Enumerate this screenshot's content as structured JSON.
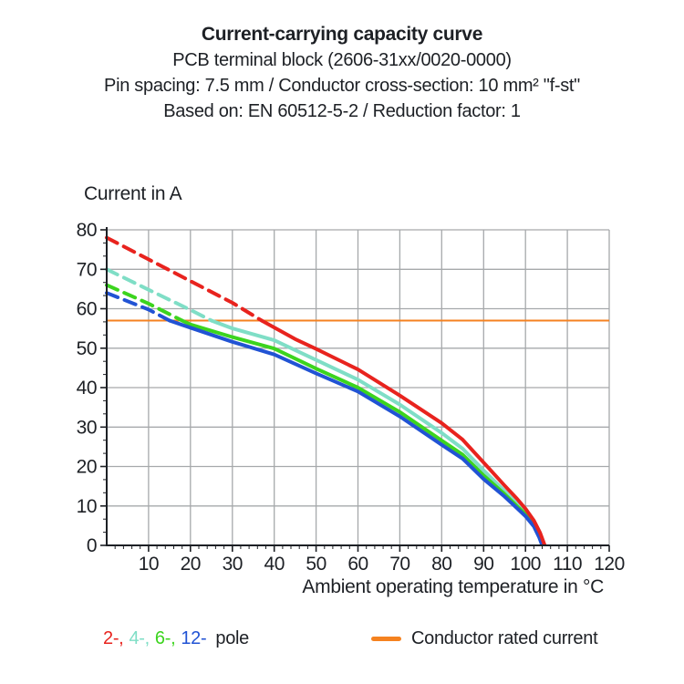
{
  "header": {
    "title": "Current-carrying capacity curve",
    "subtitle_product": "PCB terminal block (2606-31xx/0020-0000)",
    "subtitle_specs": "Pin spacing: 7.5 mm / Conductor cross-section: 10 mm² \"f-st\"",
    "subtitle_standard": "Based on: EN 60512-5-2 / Reduction factor: 1"
  },
  "legend": {
    "poles": [
      {
        "label": "2-,",
        "color": "#e8231e"
      },
      {
        "label": "4-,",
        "color": "#7fdec6"
      },
      {
        "label": "6-,",
        "color": "#3cd41e"
      },
      {
        "label": "12-",
        "color": "#2153d4"
      }
    ],
    "pole_word": "pole",
    "rated_label": "Conductor rated current",
    "rated_color": "#f58220"
  },
  "chart_data": {
    "type": "line",
    "title": "Current-carrying capacity curve",
    "xlabel": "Ambient operating temperature in °C",
    "ylabel": "Current in A",
    "xlim": [
      0,
      120
    ],
    "ylim": [
      0,
      80
    ],
    "xticks": [
      10,
      20,
      30,
      40,
      50,
      60,
      70,
      80,
      90,
      100,
      110,
      120
    ],
    "yticks": [
      0,
      10,
      20,
      30,
      40,
      50,
      60,
      70,
      80
    ],
    "x_minor_per_major": 5,
    "y_minor_per_major": 3,
    "grid": true,
    "grid_color": "#a6a9ab",
    "axis_color": "#1d2025",
    "rated_current": {
      "value": 57,
      "color": "#f58220",
      "label": "Conductor rated current"
    },
    "legend_position": "bottom",
    "series": [
      {
        "name": "4-pole",
        "color": "#7fdec6",
        "dashed_above_rated": true,
        "dashed": [
          [
            0,
            70
          ],
          [
            10,
            64.8
          ],
          [
            20,
            59.7
          ],
          [
            25,
            57
          ]
        ],
        "solid": [
          [
            25,
            57
          ],
          [
            30,
            55
          ],
          [
            40,
            52
          ],
          [
            50,
            47
          ],
          [
            60,
            42
          ],
          [
            70,
            35.7
          ],
          [
            80,
            28.5
          ],
          [
            85,
            24.5
          ],
          [
            90,
            19
          ],
          [
            95,
            13.8
          ],
          [
            98,
            10.5
          ],
          [
            100,
            8.4
          ],
          [
            102,
            5.6
          ],
          [
            103.5,
            2.7
          ],
          [
            104.4,
            0
          ]
        ]
      },
      {
        "name": "6-pole",
        "color": "#3cd41e",
        "dashed_above_rated": true,
        "dashed": [
          [
            0,
            66
          ],
          [
            10,
            61.3
          ],
          [
            18,
            57
          ]
        ],
        "solid": [
          [
            18,
            57
          ],
          [
            20,
            56
          ],
          [
            30,
            52.8
          ],
          [
            40,
            49.9
          ],
          [
            50,
            44.8
          ],
          [
            60,
            40
          ],
          [
            70,
            33.8
          ],
          [
            80,
            26.6
          ],
          [
            85,
            23
          ],
          [
            90,
            17.7
          ],
          [
            95,
            13
          ],
          [
            98,
            9.9
          ],
          [
            100,
            7.9
          ],
          [
            102,
            5.2
          ],
          [
            103.4,
            2.3
          ],
          [
            104.2,
            0
          ]
        ]
      },
      {
        "name": "12-pole",
        "color": "#2153d4",
        "dashed_above_rated": true,
        "dashed": [
          [
            0,
            64
          ],
          [
            10,
            59.8
          ],
          [
            15,
            57
          ]
        ],
        "solid": [
          [
            15,
            57
          ],
          [
            20,
            55.2
          ],
          [
            30,
            51.6
          ],
          [
            40,
            48.4
          ],
          [
            50,
            43.6
          ],
          [
            60,
            39
          ],
          [
            70,
            32.7
          ],
          [
            80,
            25.5
          ],
          [
            85,
            22
          ],
          [
            90,
            16.8
          ],
          [
            95,
            12.4
          ],
          [
            98,
            9.4
          ],
          [
            100,
            7.4
          ],
          [
            102,
            4.8
          ],
          [
            103.3,
            2
          ],
          [
            104,
            0
          ]
        ]
      },
      {
        "name": "2-pole",
        "color": "#e8231e",
        "dashed_above_rated": true,
        "dashed": [
          [
            0,
            78
          ],
          [
            10,
            72.5
          ],
          [
            20,
            67
          ],
          [
            30,
            61.5
          ],
          [
            37,
            57
          ]
        ],
        "solid": [
          [
            37,
            57
          ],
          [
            45,
            52.3
          ],
          [
            50,
            49.8
          ],
          [
            60,
            44.6
          ],
          [
            70,
            38
          ],
          [
            80,
            31
          ],
          [
            85,
            26.8
          ],
          [
            90,
            21
          ],
          [
            95,
            15.2
          ],
          [
            98,
            11.8
          ],
          [
            100,
            9.3
          ],
          [
            102,
            6.3
          ],
          [
            103.5,
            3.2
          ],
          [
            104.6,
            0
          ]
        ]
      }
    ]
  }
}
